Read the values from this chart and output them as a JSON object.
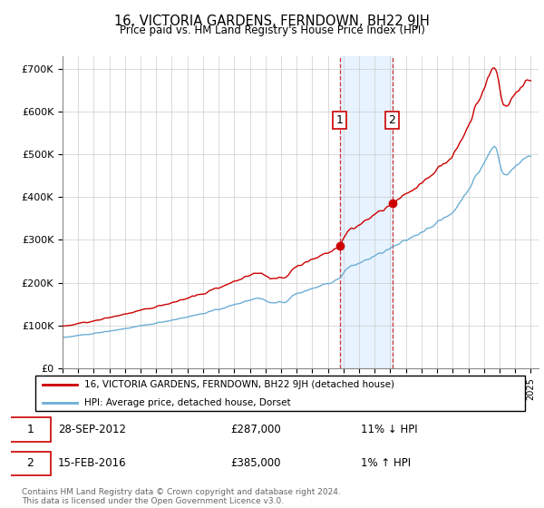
{
  "title": "16, VICTORIA GARDENS, FERNDOWN, BH22 9JH",
  "subtitle": "Price paid vs. HM Land Registry's House Price Index (HPI)",
  "ylabel_ticks": [
    "£0",
    "£100K",
    "£200K",
    "£300K",
    "£400K",
    "£500K",
    "£600K",
    "£700K"
  ],
  "ytick_values": [
    0,
    100000,
    200000,
    300000,
    400000,
    500000,
    600000,
    700000
  ],
  "ylim": [
    0,
    730000
  ],
  "xlim_start": 1995.0,
  "xlim_end": 2025.5,
  "transaction1_date": 2012.75,
  "transaction1_price": 287000,
  "transaction2_date": 2016.12,
  "transaction2_price": 385000,
  "hpi_color": "#6baed6",
  "price_color": "#cc0000",
  "shade_color": "#ddeeff",
  "legend_label_red": "16, VICTORIA GARDENS, FERNDOWN, BH22 9JH (detached house)",
  "legend_label_blue": "HPI: Average price, detached house, Dorset",
  "footnote": "Contains HM Land Registry data © Crown copyright and database right 2024.\nThis data is licensed under the Open Government Licence v3.0.",
  "xtick_years": [
    1995,
    1996,
    1997,
    1998,
    1999,
    2000,
    2001,
    2002,
    2003,
    2004,
    2005,
    2006,
    2007,
    2008,
    2009,
    2010,
    2011,
    2012,
    2013,
    2014,
    2015,
    2016,
    2017,
    2018,
    2019,
    2020,
    2021,
    2022,
    2023,
    2024,
    2025
  ]
}
